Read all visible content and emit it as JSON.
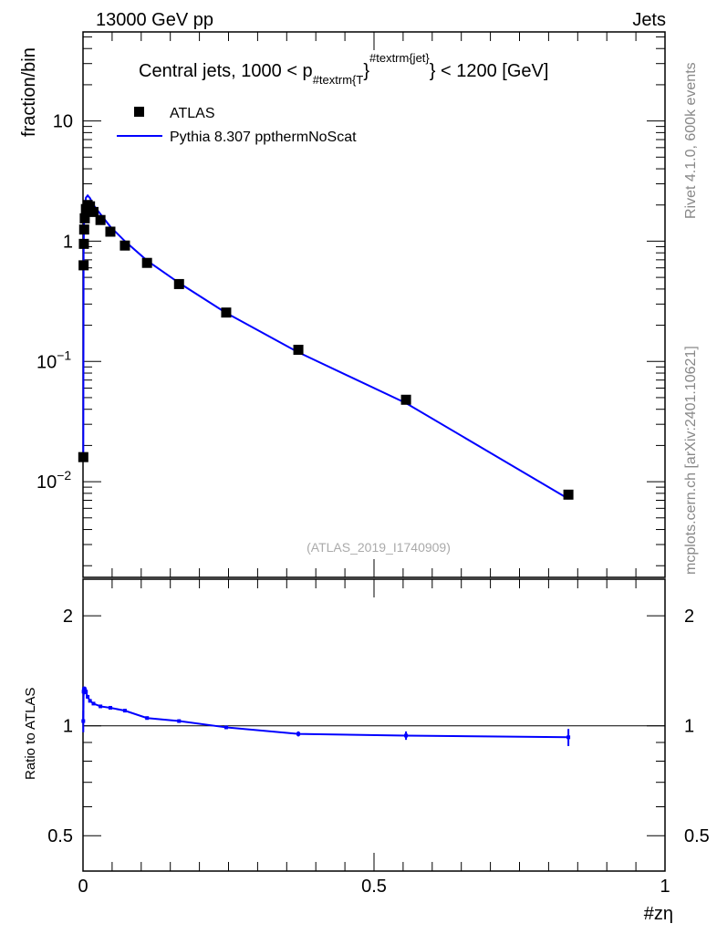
{
  "header": {
    "left": "13000 GeV pp",
    "right": "Jets"
  },
  "side_labels": {
    "top": "Rivet 4.1.0,  600k events",
    "bottom": "mcplots.cern.ch [arXiv:2401.10621]"
  },
  "watermark": "(ATLAS_2019_I1740909)",
  "chart_data": [
    {
      "type": "scatter",
      "title": "Central jets, 1000 < p_{#textrm{T}}^{#textrm{jet}} < 1200 [GeV]",
      "title_parts": {
        "main": "Central jets, 1000 < p",
        "sub": "#textrm{T",
        "brace": "}",
        "sup": "#textrm{jet}",
        "tail": "} < 1200 [GeV]"
      },
      "ylabel": "fraction/bin",
      "yscale": "log",
      "ylim": [
        0.0016,
        55
      ],
      "xlim": [
        0,
        1
      ],
      "yticks": [
        {
          "v": 10,
          "label": "10"
        },
        {
          "v": 1,
          "label": "1"
        },
        {
          "v": 0.1,
          "label": "10",
          "exp": "−1"
        },
        {
          "v": 0.01,
          "label": "10",
          "exp": "−2"
        }
      ],
      "legend": {
        "placement": "top-left",
        "entries": [
          {
            "name": "ATLAS",
            "marker": "square",
            "color": "#000000"
          },
          {
            "name": "Pythia 8.307 ppthermNoScat",
            "marker": "line",
            "color": "#0000ff"
          }
        ]
      },
      "x": [
        0.0005,
        0.001,
        0.0015,
        0.002,
        0.003,
        0.005,
        0.008,
        0.012,
        0.018,
        0.03,
        0.047,
        0.072,
        0.11,
        0.165,
        0.246,
        0.37,
        0.555,
        0.834
      ],
      "series": [
        {
          "name": "ATLAS",
          "values": [
            0.016,
            0.63,
            0.95,
            1.25,
            1.55,
            1.85,
            2.0,
            1.95,
            1.75,
            1.5,
            1.2,
            0.92,
            0.66,
            0.44,
            0.255,
            0.125,
            0.048,
            0.0078
          ]
        },
        {
          "name": "Pythia 8.307 ppthermNoScat",
          "values": [
            0.0165,
            0.78,
            1.2,
            1.55,
            1.95,
            2.3,
            2.4,
            2.28,
            2.0,
            1.68,
            1.32,
            1.0,
            0.69,
            0.45,
            0.253,
            0.119,
            0.045,
            0.0072
          ]
        }
      ]
    },
    {
      "type": "line",
      "ylabel": "Ratio to ATLAS",
      "xlabel": "#zη",
      "yscale": "log",
      "ylim": [
        0.4,
        2.52
      ],
      "xlim": [
        0,
        1
      ],
      "yticks": [
        {
          "v": 2,
          "label": "2"
        },
        {
          "v": 1,
          "label": "1"
        },
        {
          "v": 0.5,
          "label": "0.5"
        }
      ],
      "xticks": [
        {
          "v": 0,
          "label": "0"
        },
        {
          "v": 0.5,
          "label": "0.5"
        },
        {
          "v": 1,
          "label": "1"
        }
      ],
      "x": [
        0.0005,
        0.001,
        0.0015,
        0.002,
        0.003,
        0.005,
        0.008,
        0.012,
        0.018,
        0.03,
        0.047,
        0.072,
        0.11,
        0.165,
        0.246,
        0.37,
        0.555,
        0.834
      ],
      "series": [
        {
          "name": "Pythia 8.307 ppthermNoScat",
          "values": [
            1.03,
            1.24,
            1.26,
            1.24,
            1.26,
            1.24,
            1.2,
            1.17,
            1.15,
            1.13,
            1.12,
            1.1,
            1.05,
            1.03,
            0.99,
            0.95,
            0.94,
            0.93
          ],
          "errors": [
            0.07,
            0.03,
            0.02,
            0.02,
            0.02,
            0.02,
            0.01,
            0.01,
            0.01,
            0.01,
            0.01,
            0.01,
            0.01,
            0.01,
            0.01,
            0.015,
            0.025,
            0.05
          ]
        }
      ]
    }
  ]
}
